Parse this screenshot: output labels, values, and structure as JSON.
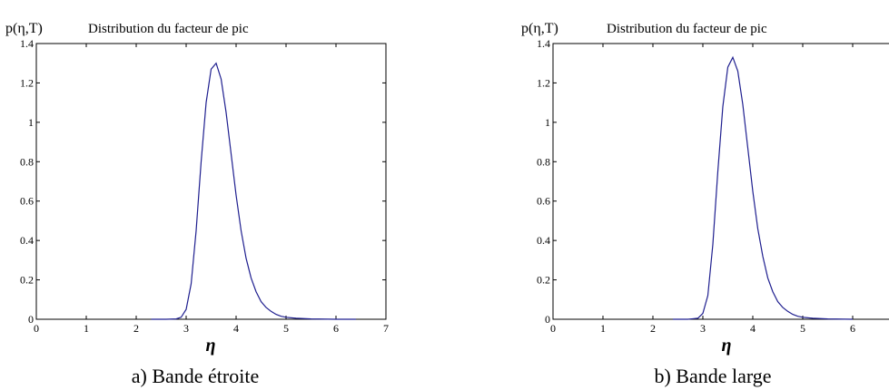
{
  "chart_data": [
    {
      "type": "line",
      "title": "Distribution du facteur de pic",
      "ylabel": "p(η,T)",
      "xlabel": "η",
      "caption": "a) Bande étroite",
      "xlim": [
        0,
        7
      ],
      "ylim": [
        0,
        1.4
      ],
      "x_ticks": [
        "0",
        "1",
        "2",
        "3",
        "4",
        "5",
        "6",
        "7"
      ],
      "y_ticks": [
        "0",
        "0.2",
        "0.4",
        "0.6",
        "0.8",
        "1",
        "1.2",
        "1.4"
      ],
      "grid": false,
      "series": [
        {
          "color": "#1f1f8f",
          "x": [
            2.3,
            2.6,
            2.8,
            2.9,
            3.0,
            3.1,
            3.2,
            3.3,
            3.4,
            3.5,
            3.6,
            3.7,
            3.8,
            3.9,
            4.0,
            4.1,
            4.2,
            4.3,
            4.4,
            4.5,
            4.6,
            4.7,
            4.8,
            4.9,
            5.0,
            5.2,
            5.5,
            6.0,
            6.4
          ],
          "y": [
            0,
            0,
            0.002,
            0.01,
            0.05,
            0.18,
            0.45,
            0.8,
            1.1,
            1.27,
            1.3,
            1.22,
            1.05,
            0.84,
            0.63,
            0.45,
            0.31,
            0.21,
            0.14,
            0.09,
            0.06,
            0.04,
            0.025,
            0.015,
            0.01,
            0.005,
            0.002,
            0,
            0
          ]
        }
      ]
    },
    {
      "type": "line",
      "title": "Distribution du facteur de pic",
      "ylabel": "p(η,T)",
      "xlabel": "η",
      "caption": "b) Bande large",
      "xlim": [
        0,
        7
      ],
      "ylim": [
        0,
        1.4
      ],
      "x_ticks": [
        "0",
        "1",
        "2",
        "3",
        "4",
        "5",
        "6"
      ],
      "y_ticks": [
        "0",
        "0.2",
        "0.4",
        "0.6",
        "0.8",
        "1",
        "1.2",
        "1.4"
      ],
      "grid": false,
      "series": [
        {
          "color": "#1f1f8f",
          "x": [
            2.4,
            2.7,
            2.9,
            3.0,
            3.1,
            3.2,
            3.3,
            3.4,
            3.5,
            3.6,
            3.7,
            3.8,
            3.9,
            4.0,
            4.1,
            4.2,
            4.3,
            4.4,
            4.5,
            4.6,
            4.7,
            4.8,
            4.9,
            5.0,
            5.2,
            5.5,
            6.0
          ],
          "y": [
            0,
            0,
            0.005,
            0.03,
            0.12,
            0.38,
            0.75,
            1.08,
            1.28,
            1.33,
            1.26,
            1.09,
            0.87,
            0.65,
            0.46,
            0.32,
            0.21,
            0.14,
            0.09,
            0.06,
            0.04,
            0.025,
            0.015,
            0.01,
            0.005,
            0.002,
            0
          ]
        }
      ]
    }
  ]
}
